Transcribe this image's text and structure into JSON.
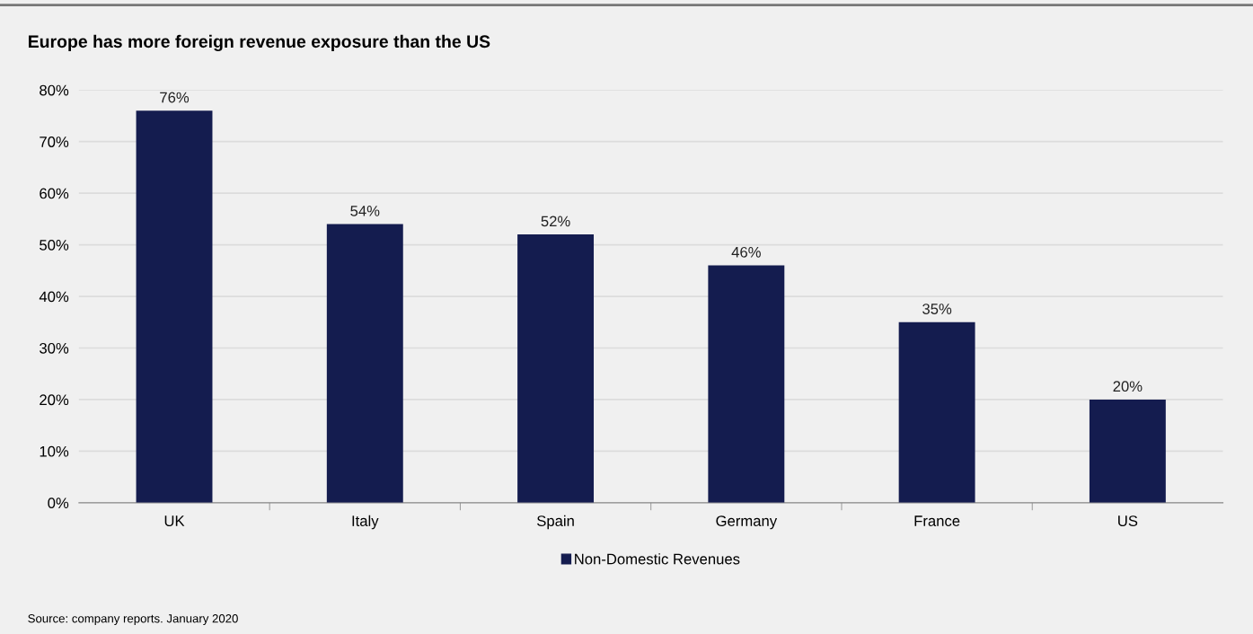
{
  "chart_data": {
    "type": "bar",
    "title": "Europe has more foreign revenue exposure than the US",
    "categories": [
      "UK",
      "Italy",
      "Spain",
      "Germany",
      "France",
      "US"
    ],
    "series": [
      {
        "name": "Non-Domestic Revenues",
        "color": "#141c4f",
        "values": [
          76,
          54,
          52,
          46,
          35,
          20
        ]
      }
    ],
    "value_labels": [
      "76%",
      "54%",
      "52%",
      "46%",
      "35%",
      "20%"
    ],
    "ylim": [
      0,
      80
    ],
    "yticks": [
      {
        "value": 0,
        "label": "0%"
      },
      {
        "value": 10,
        "label": "10%"
      },
      {
        "value": 20,
        "label": "20%"
      },
      {
        "value": 30,
        "label": "30%"
      },
      {
        "value": 40,
        "label": "40%"
      },
      {
        "value": 50,
        "label": "50%"
      },
      {
        "value": 60,
        "label": "60%"
      },
      {
        "value": 70,
        "label": "70%"
      },
      {
        "value": 80,
        "label": "80%"
      }
    ],
    "grid": "y",
    "legend": "bottom",
    "annotations": [
      "Source: company reports. January 2020"
    ]
  }
}
